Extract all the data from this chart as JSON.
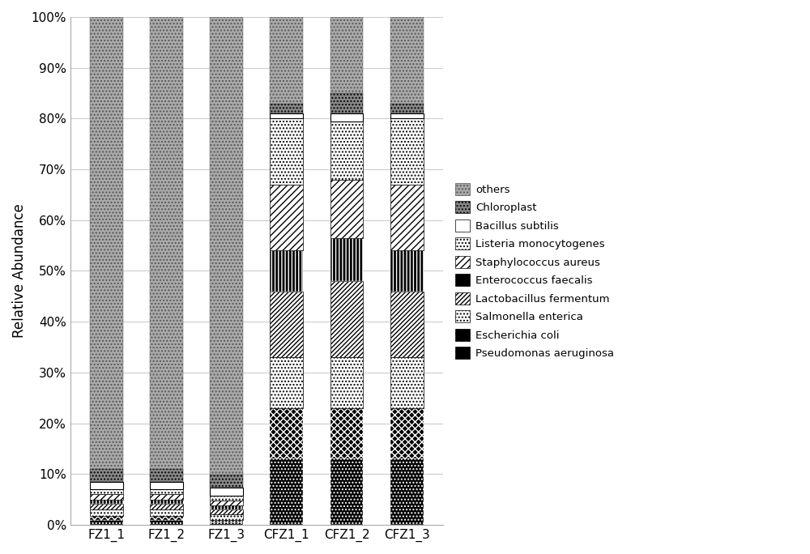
{
  "categories": [
    "FZ1_1",
    "FZ1_2",
    "FZ1_3",
    "CFZ1_1",
    "CFZ1_2",
    "CFZ1_3"
  ],
  "species": [
    "Pseudomonas aeruginosa",
    "Escherichia coli",
    "Salmonella enterica",
    "Lactobacillus fermentum",
    "Enterococcus faecalis",
    "Staphylococcus aureus",
    "Listeria monocytogenes",
    "Bacillus subtilis",
    "Chloroplast",
    "others"
  ],
  "data": {
    "Pseudomonas aeruginosa": [
      1.0,
      1.0,
      0.5,
      13.0,
      13.0,
      13.0
    ],
    "Escherichia coli": [
      0.8,
      0.8,
      0.5,
      10.0,
      10.0,
      10.0
    ],
    "Salmonella enterica": [
      1.2,
      1.2,
      1.0,
      10.0,
      10.0,
      10.0
    ],
    "Lactobacillus fermentum": [
      1.2,
      1.2,
      1.0,
      13.0,
      15.0,
      13.0
    ],
    "Enterococcus faecalis": [
      0.8,
      0.8,
      0.8,
      8.0,
      8.5,
      8.0
    ],
    "Staphylococcus aureus": [
      1.0,
      1.0,
      1.0,
      13.0,
      11.5,
      13.0
    ],
    "Listeria monocytogenes": [
      1.0,
      1.0,
      1.0,
      13.0,
      11.5,
      13.0
    ],
    "Bacillus subtilis": [
      1.5,
      1.5,
      1.5,
      1.0,
      1.5,
      1.0
    ],
    "Chloroplast": [
      2.5,
      2.5,
      2.5,
      2.0,
      4.0,
      2.0
    ],
    "others": [
      89.0,
      89.0,
      90.2,
      17.0,
      15.0,
      17.0
    ]
  },
  "ylabel": "Relative Abundance",
  "yticks": [
    0,
    10,
    20,
    30,
    40,
    50,
    60,
    70,
    80,
    90,
    100
  ],
  "yticklabels": [
    "0%",
    "10%",
    "20%",
    "30%",
    "40%",
    "50%",
    "60%",
    "70%",
    "80%",
    "90%",
    "100%"
  ],
  "bar_width": 0.55,
  "figsize": [
    10.0,
    6.84
  ],
  "dpi": 100
}
